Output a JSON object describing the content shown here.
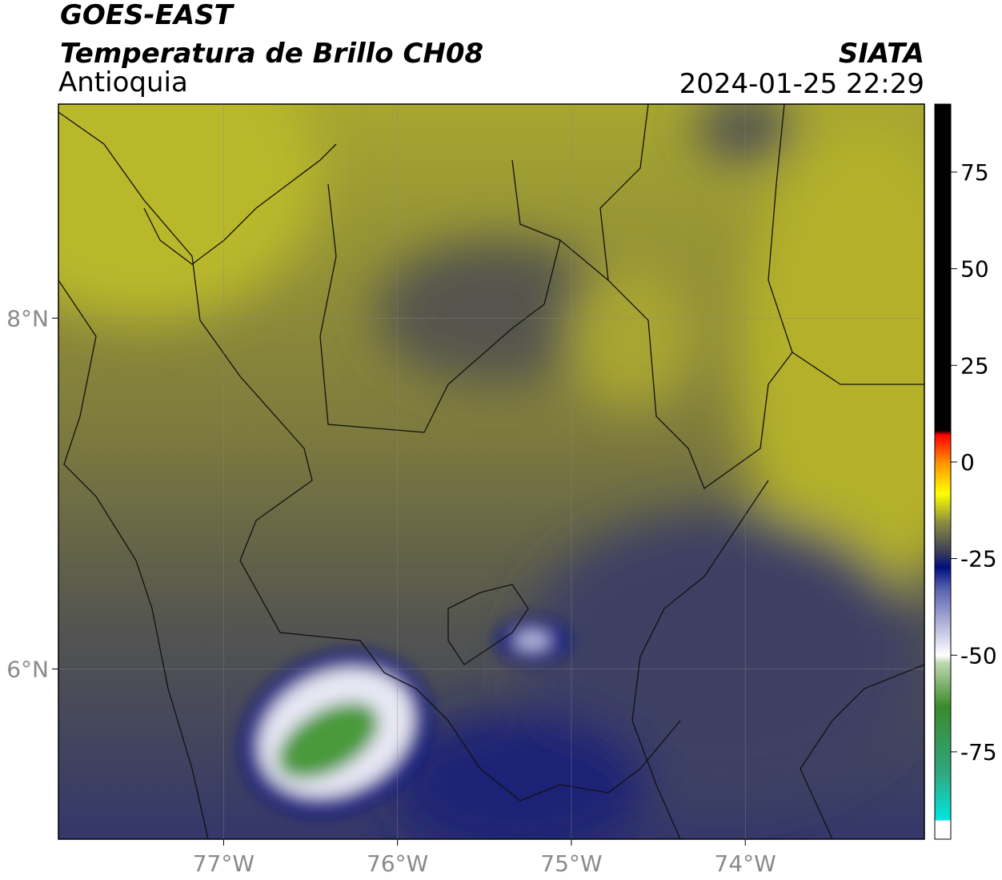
{
  "header": {
    "title": "GOES-EAST",
    "subtitle": "Temperatura de Brillo CH08",
    "region": "Antioquia",
    "source": "SIATA",
    "datetime": "2024-01-25 22:29"
  },
  "map": {
    "xlim": [
      -77.95,
      -72.97
    ],
    "ylim": [
      5.03,
      9.22
    ],
    "xticks": [
      {
        "value": -77,
        "label": "77°W"
      },
      {
        "value": -76,
        "label": "76°W"
      },
      {
        "value": -75,
        "label": "75°W"
      },
      {
        "value": -74,
        "label": "74°W"
      }
    ],
    "yticks": [
      {
        "value": 6,
        "label": "6°N"
      },
      {
        "value": 8,
        "label": "8°N"
      }
    ]
  },
  "colorbar": {
    "lim": [
      -97.6,
      92.6
    ],
    "ticks": [
      75,
      50,
      25,
      0,
      -25,
      -50,
      -75
    ]
  }
}
